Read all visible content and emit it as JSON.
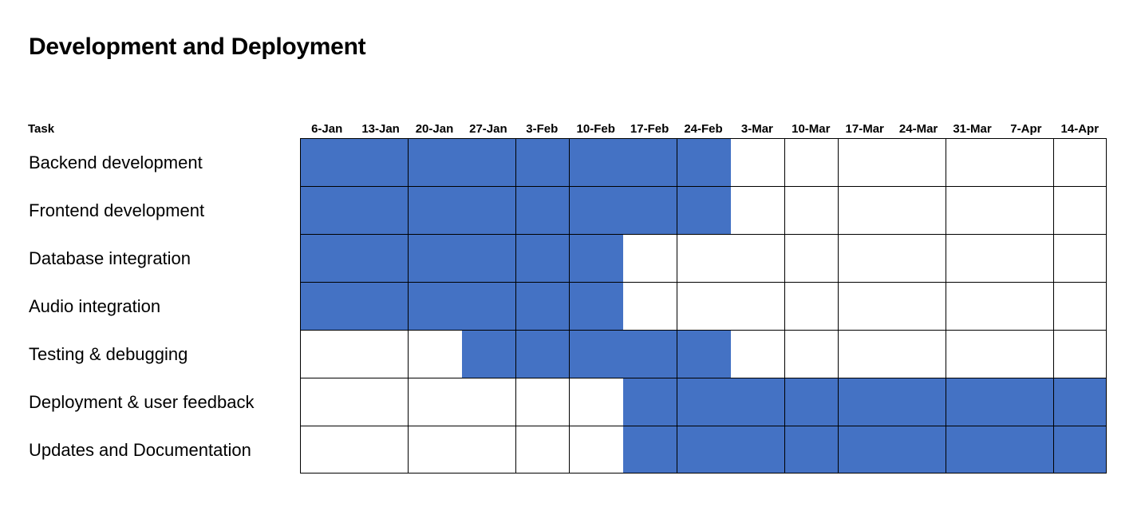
{
  "title": "Development and Deployment",
  "colors": {
    "filled": "#4472C4",
    "empty": "#FFFFFF",
    "grid_line": "#000000"
  },
  "chart_data": {
    "type": "table",
    "title": "Development and Deployment",
    "row_header": "Task",
    "columns": [
      "6-Jan",
      "13-Jan",
      "20-Jan",
      "27-Jan",
      "3-Feb",
      "10-Feb",
      "17-Feb",
      "24-Feb",
      "3-Mar",
      "10-Mar",
      "17-Mar",
      "24-Mar",
      "31-Mar",
      "7-Apr",
      "14-Apr"
    ],
    "tasks": [
      {
        "name": "Backend development",
        "start": "6-Jan",
        "end": "24-Feb",
        "weeks": [
          1,
          1,
          1,
          1,
          1,
          1,
          1,
          1,
          0,
          0,
          0,
          0,
          0,
          0,
          0
        ]
      },
      {
        "name": "Frontend development",
        "start": "6-Jan",
        "end": "24-Feb",
        "weeks": [
          1,
          1,
          1,
          1,
          1,
          1,
          1,
          1,
          0,
          0,
          0,
          0,
          0,
          0,
          0
        ]
      },
      {
        "name": "Database integration",
        "start": "6-Jan",
        "end": "10-Feb",
        "weeks": [
          1,
          1,
          1,
          1,
          1,
          1,
          0,
          0,
          0,
          0,
          0,
          0,
          0,
          0,
          0
        ]
      },
      {
        "name": "Audio integration",
        "start": "6-Jan",
        "end": "10-Feb",
        "weeks": [
          1,
          1,
          1,
          1,
          1,
          1,
          0,
          0,
          0,
          0,
          0,
          0,
          0,
          0,
          0
        ]
      },
      {
        "name": "Testing & debugging",
        "start": "27-Jan",
        "end": "24-Feb",
        "weeks": [
          0,
          0,
          0,
          1,
          1,
          1,
          1,
          1,
          0,
          0,
          0,
          0,
          0,
          0,
          0
        ]
      },
      {
        "name": "Deployment & user feedback",
        "start": "17-Feb",
        "end": "14-Apr",
        "weeks": [
          0,
          0,
          0,
          0,
          0,
          0,
          1,
          1,
          1,
          1,
          1,
          1,
          1,
          1,
          1
        ]
      },
      {
        "name": "Updates and Documentation",
        "start": "17-Feb",
        "end": "14-Apr",
        "weeks": [
          0,
          0,
          0,
          0,
          0,
          0,
          1,
          1,
          1,
          1,
          1,
          1,
          1,
          1,
          1
        ]
      }
    ],
    "grid": true
  }
}
